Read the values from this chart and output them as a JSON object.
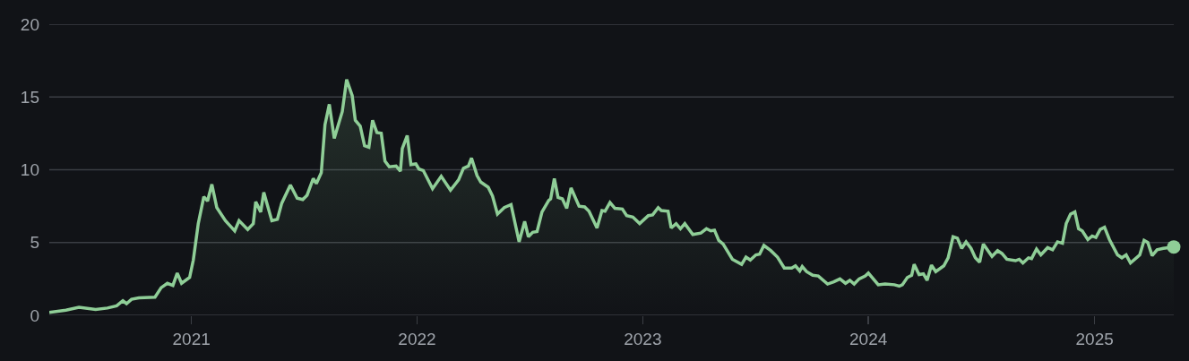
{
  "chart_data": {
    "type": "area",
    "xlim": [
      "2020-05-16",
      "2025-05-09"
    ],
    "ylim": [
      0,
      20
    ],
    "xticks": [
      {
        "value": "2021-01-01",
        "label": "2021"
      },
      {
        "value": "2022-01-01",
        "label": "2022"
      },
      {
        "value": "2023-01-01",
        "label": "2023"
      },
      {
        "value": "2024-01-01",
        "label": "2024"
      },
      {
        "value": "2025-01-01",
        "label": "2025"
      }
    ],
    "yticks": [
      0,
      5,
      10,
      15,
      20
    ],
    "grid": "y",
    "marker": "none",
    "line_style": "solid",
    "series": [
      {
        "color": "#8fce97",
        "x": [
          "2020-05-16",
          "2020-06-12",
          "2020-07-03",
          "2020-07-30",
          "2020-08-18",
          "2020-09-02",
          "2020-09-12",
          "2020-09-18",
          "2020-09-26",
          "2020-10-08",
          "2020-11-03",
          "2020-11-13",
          "2020-11-23",
          "2020-12-02",
          "2020-12-09",
          "2020-12-16",
          "2020-12-29",
          "2021-01-04",
          "2021-01-12",
          "2021-01-21",
          "2021-01-27",
          "2021-02-03",
          "2021-02-11",
          "2021-02-25",
          "2021-03-12",
          "2021-03-19",
          "2021-04-02",
          "2021-04-11",
          "2021-04-15",
          "2021-04-23",
          "2021-04-28",
          "2021-05-11",
          "2021-05-20",
          "2021-05-27",
          "2021-06-10",
          "2021-06-21",
          "2021-06-30",
          "2021-07-07",
          "2021-07-17",
          "2021-07-22",
          "2021-07-30",
          "2021-08-05",
          "2021-08-12",
          "2021-08-20",
          "2021-09-02",
          "2021-09-09",
          "2021-09-18",
          "2021-09-23",
          "2021-10-01",
          "2021-10-08",
          "2021-10-15",
          "2021-10-21",
          "2021-10-28",
          "2021-11-04",
          "2021-11-10",
          "2021-11-17",
          "2021-11-28",
          "2021-12-05",
          "2021-12-08",
          "2021-12-16",
          "2021-12-22",
          "2021-12-30",
          "2022-01-04",
          "2022-01-11",
          "2022-01-26",
          "2022-02-09",
          "2022-02-24",
          "2022-03-09",
          "2022-03-17",
          "2022-03-25",
          "2022-03-30",
          "2022-04-08",
          "2022-04-14",
          "2022-04-26",
          "2022-05-03",
          "2022-05-11",
          "2022-05-22",
          "2022-06-02",
          "2022-06-15",
          "2022-06-24",
          "2022-06-30",
          "2022-07-07",
          "2022-07-14",
          "2022-07-22",
          "2022-08-02",
          "2022-08-05",
          "2022-08-11",
          "2022-08-17",
          "2022-08-24",
          "2022-08-31",
          "2022-09-07",
          "2022-09-20",
          "2022-09-29",
          "2022-10-06",
          "2022-10-19",
          "2022-10-27",
          "2022-11-01",
          "2022-11-09",
          "2022-11-17",
          "2022-11-29",
          "2022-12-06",
          "2022-12-16",
          "2022-12-27",
          "2023-01-10",
          "2023-01-17",
          "2023-01-26",
          "2023-01-31",
          "2023-02-11",
          "2023-02-16",
          "2023-02-24",
          "2023-03-03",
          "2023-03-10",
          "2023-03-23",
          "2023-04-05",
          "2023-04-14",
          "2023-04-21",
          "2023-04-27",
          "2023-05-04",
          "2023-05-11",
          "2023-05-26",
          "2023-06-10",
          "2023-06-17",
          "2023-06-24",
          "2023-07-03",
          "2023-07-09",
          "2023-07-16",
          "2023-07-27",
          "2023-08-07",
          "2023-08-18",
          "2023-08-30",
          "2023-09-05",
          "2023-09-12",
          "2023-09-16",
          "2023-09-23",
          "2023-10-03",
          "2023-10-12",
          "2023-10-27",
          "2023-11-06",
          "2023-11-16",
          "2023-11-25",
          "2023-12-02",
          "2023-12-09",
          "2023-12-17",
          "2023-12-27",
          "2024-01-01",
          "2024-01-17",
          "2024-01-28",
          "2024-02-12",
          "2024-02-20",
          "2024-02-25",
          "2024-03-04",
          "2024-03-11",
          "2024-03-15",
          "2024-03-23",
          "2024-03-30",
          "2024-04-05",
          "2024-04-12",
          "2024-04-19",
          "2024-05-02",
          "2024-05-09",
          "2024-05-17",
          "2024-05-24",
          "2024-05-31",
          "2024-06-07",
          "2024-06-15",
          "2024-06-22",
          "2024-06-29",
          "2024-07-05",
          "2024-07-19",
          "2024-07-28",
          "2024-08-04",
          "2024-08-12",
          "2024-08-26",
          "2024-09-01",
          "2024-09-07",
          "2024-09-16",
          "2024-09-21",
          "2024-09-29",
          "2024-10-06",
          "2024-10-17",
          "2024-10-25",
          "2024-11-02",
          "2024-11-10",
          "2024-11-16",
          "2024-11-23",
          "2024-11-30",
          "2024-12-06",
          "2024-12-12",
          "2024-12-21",
          "2024-12-28",
          "2025-01-03",
          "2025-01-10",
          "2025-01-17",
          "2025-01-25",
          "2025-02-07",
          "2025-02-14",
          "2025-02-21",
          "2025-02-28",
          "2025-03-15",
          "2025-03-22",
          "2025-03-28",
          "2025-04-04",
          "2025-04-12",
          "2025-04-22",
          "2025-05-09"
        ],
        "values": [
          0.2,
          0.35,
          0.55,
          0.4,
          0.5,
          0.65,
          1.0,
          0.8,
          1.1,
          1.2,
          1.25,
          1.9,
          2.2,
          2.05,
          2.9,
          2.2,
          2.6,
          3.8,
          6.3,
          8.15,
          7.85,
          9.0,
          7.4,
          6.5,
          5.8,
          6.5,
          5.9,
          6.3,
          7.8,
          7.1,
          8.45,
          6.5,
          6.6,
          7.7,
          8.95,
          8.05,
          7.95,
          8.25,
          9.4,
          9.05,
          9.8,
          13.1,
          14.5,
          12.15,
          14.0,
          16.2,
          15.1,
          13.4,
          13.0,
          11.65,
          11.55,
          13.4,
          12.55,
          12.5,
          10.6,
          10.2,
          10.25,
          9.9,
          11.45,
          12.35,
          10.35,
          10.4,
          10.05,
          9.95,
          8.7,
          9.55,
          8.6,
          9.3,
          10.1,
          10.25,
          10.8,
          9.6,
          9.15,
          8.8,
          8.2,
          6.95,
          7.4,
          7.6,
          5.05,
          6.45,
          5.4,
          5.7,
          5.75,
          7.1,
          7.9,
          8.0,
          9.4,
          8.1,
          8.0,
          7.35,
          8.75,
          7.5,
          7.45,
          7.15,
          6.0,
          7.2,
          7.15,
          7.75,
          7.35,
          7.3,
          6.85,
          6.75,
          6.3,
          6.85,
          6.9,
          7.4,
          7.2,
          7.15,
          6.0,
          6.3,
          5.95,
          6.3,
          5.55,
          5.65,
          5.95,
          5.8,
          5.85,
          5.15,
          4.9,
          3.85,
          3.5,
          4.0,
          3.8,
          4.15,
          4.2,
          4.8,
          4.45,
          4.0,
          3.25,
          3.25,
          3.4,
          3.05,
          3.35,
          3.0,
          2.75,
          2.7,
          2.15,
          2.3,
          2.5,
          2.2,
          2.4,
          2.15,
          2.5,
          2.7,
          2.9,
          2.1,
          2.15,
          2.1,
          2.0,
          2.1,
          2.6,
          2.75,
          3.5,
          2.8,
          2.85,
          2.4,
          3.45,
          3.0,
          3.4,
          3.95,
          5.4,
          5.3,
          4.6,
          5.05,
          4.6,
          3.95,
          3.65,
          4.9,
          4.05,
          4.45,
          4.25,
          3.85,
          3.75,
          3.85,
          3.6,
          3.95,
          3.9,
          4.55,
          4.15,
          4.65,
          4.5,
          5.05,
          4.95,
          6.3,
          6.95,
          7.1,
          5.95,
          5.8,
          5.2,
          5.45,
          5.35,
          5.9,
          6.05,
          5.2,
          4.15,
          3.95,
          4.15,
          3.6,
          4.15,
          5.15,
          5.0,
          4.1,
          4.5,
          4.6,
          4.7
        ]
      },
      {
        "type": "scatter",
        "marker": "circle",
        "color": "#8fce97",
        "x": [
          "2025-05-09"
        ],
        "values": [
          4.7
        ]
      }
    ]
  }
}
